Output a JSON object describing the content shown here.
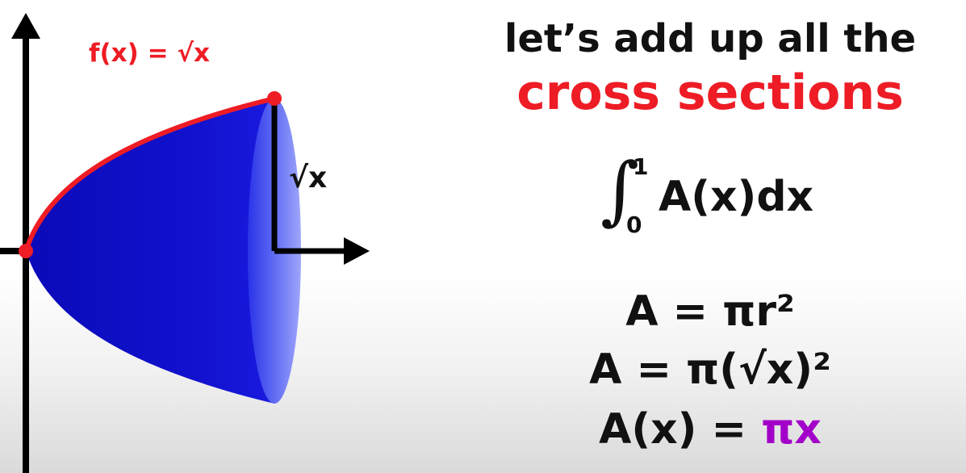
{
  "heading": {
    "line1": "let’s add up all the",
    "line2": "cross sections"
  },
  "graph": {
    "function_label": "f(x) = √x",
    "radius_label": "√x"
  },
  "integral": {
    "symbol": "∫",
    "upper": "1",
    "lower": "0",
    "integrand": "A(x)dx"
  },
  "equations": {
    "eq1": "A = πr²",
    "eq2": "A = π(√x)²",
    "eq3_lhs": "A(x) = ",
    "eq3_pi": "π",
    "eq3_x": "x"
  },
  "colors": {
    "curve": "#ee1c25",
    "solid": "#1010c8",
    "highlight": "#a200c8",
    "text": "#111111"
  }
}
